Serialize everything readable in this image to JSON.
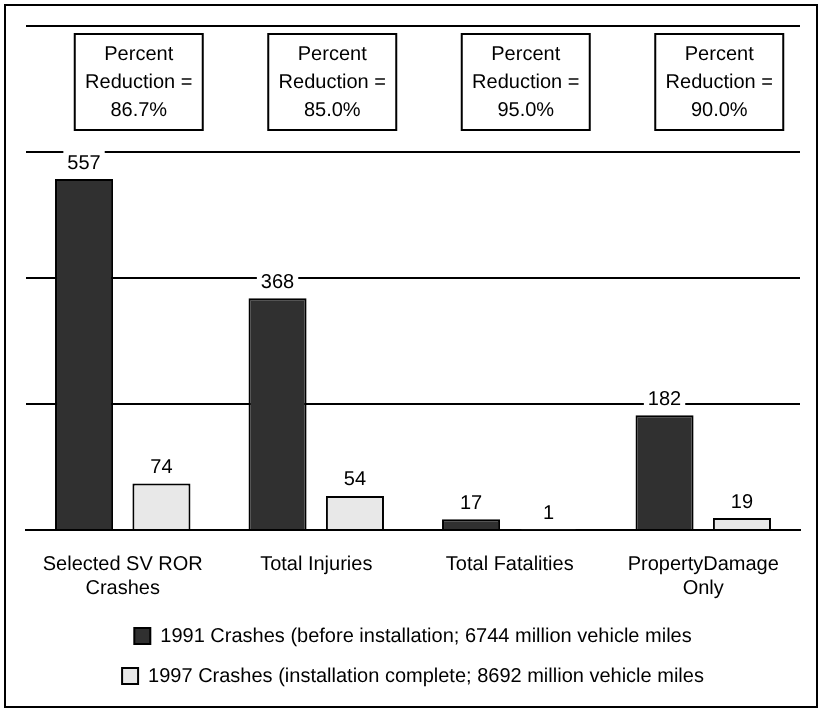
{
  "chart_data": {
    "type": "bar",
    "categories": [
      "Selected SV ROR Crashes",
      "Total Injuries",
      "Total Fatalities",
      "PropertyDamage Only"
    ],
    "series": [
      {
        "name": "1991 Crashes (before installation; 6744 million vehicle miles",
        "color": "#303030",
        "values": [
          557,
          368,
          17,
          182
        ]
      },
      {
        "name": "1997 Crashes (installation complete; 8692 million vehicle miles",
        "color": "#e8e8e8",
        "values": [
          74,
          54,
          1,
          19
        ]
      }
    ],
    "data_labels": true,
    "annotations": [
      "Percent Reduction = 86.7%",
      "Percent Reduction = 85.0%",
      "Percent Reduction = 95.0%",
      "Percent Reduction = 90.0%"
    ],
    "ylim": [
      0,
      800
    ],
    "yticks": [
      {
        "value": 0,
        "label": null
      },
      {
        "value": 200,
        "label": null
      },
      {
        "value": 400,
        "label": null
      },
      {
        "value": 600,
        "label": null
      },
      {
        "value": 800,
        "label": null
      }
    ],
    "grid": "y",
    "tick_labels": "x",
    "legend": "bottom"
  }
}
